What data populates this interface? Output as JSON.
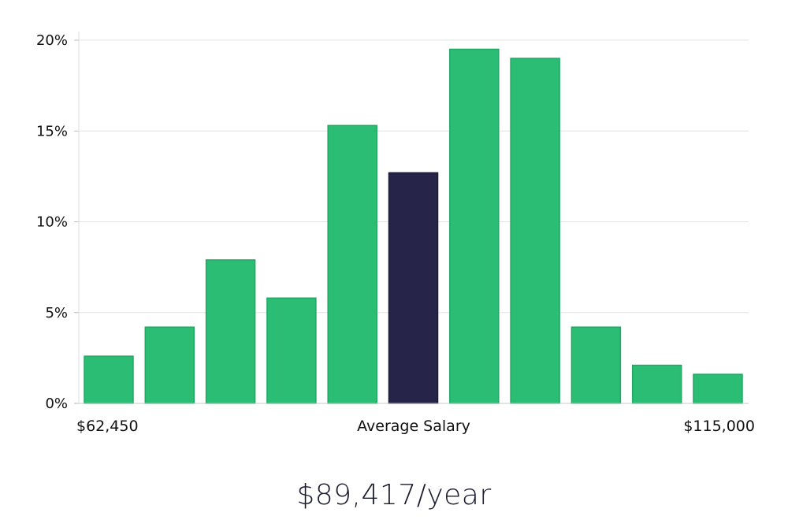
{
  "chart_data": {
    "type": "bar",
    "y_unit": "%",
    "ylim": [
      0,
      20
    ],
    "yticks": [
      0,
      5,
      10,
      15,
      20
    ],
    "ytick_labels": [
      "0%",
      "5%",
      "10%",
      "15%",
      "20%"
    ],
    "grid": true,
    "values": [
      2.6,
      4.2,
      7.9,
      5.8,
      15.3,
      12.7,
      19.5,
      19.0,
      4.2,
      2.1,
      1.6
    ],
    "highlight_index": 5,
    "bar_color": "#2bbd73",
    "highlight_color": "#27244a",
    "x_axis_labels": {
      "left": "$62,450",
      "center": "Average Salary",
      "right": "$115,000"
    }
  },
  "headline": "$89,417/year"
}
